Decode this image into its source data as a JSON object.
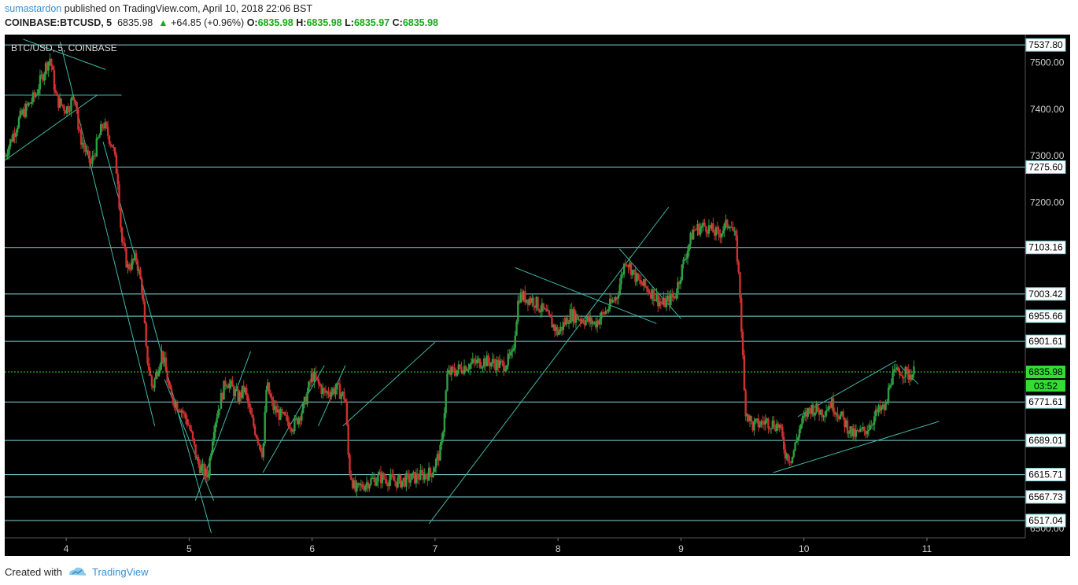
{
  "header": {
    "author": "sumastardon",
    "published": "published on TradingView.com, April 10, 2018 22:06 BST",
    "symbol": "COINBASE:BTCUSD, 5",
    "last": "6835.98",
    "change": "+64.85 (+0.96%)",
    "o_label": "O:",
    "o": "6835.98",
    "h_label": "H:",
    "h": "6835.98",
    "l_label": "L:",
    "l": "6835.97",
    "c_label": "C:",
    "c": "6835.98"
  },
  "footer": {
    "created_with": "Created with",
    "brand": "TradingView"
  },
  "colors": {
    "background": "#000000",
    "up": "#2ea043",
    "down": "#d03030",
    "level": "#7fd3d8",
    "trend": "#3fb8a8",
    "last_price": "#33dd33"
  },
  "chart_data": {
    "type": "candlestick",
    "title": "BTC/USD, 5, COINBASE",
    "ylim": [
      6480,
      7560
    ],
    "y_ticks": [
      "7500.00",
      "7400.00",
      "7300.00",
      "7200.00",
      "6500.00"
    ],
    "x_ticks": [
      "4",
      "5",
      "6",
      "7",
      "8",
      "9",
      "10",
      "11"
    ],
    "xlim": [
      3.5,
      11.8
    ],
    "last_price": {
      "value": 6835.98,
      "label": "6835.98"
    },
    "overlapped_label": "03:52",
    "levels": [
      {
        "value": 7537.8,
        "label": "7537.80"
      },
      {
        "value": 7275.6,
        "label": "7275.60"
      },
      {
        "value": 7103.16,
        "label": "7103.16"
      },
      {
        "value": 7003.42,
        "label": "7003.42"
      },
      {
        "value": 6955.66,
        "label": "6955.66"
      },
      {
        "value": 6901.61,
        "label": "6901.61"
      },
      {
        "value": 6771.61,
        "label": "6771.61"
      },
      {
        "value": 6689.01,
        "label": "6689.01"
      },
      {
        "value": 6615.71,
        "label": "6615.71"
      },
      {
        "value": 6567.73,
        "label": "6567.73"
      },
      {
        "value": 6517.04,
        "label": "6517.04"
      }
    ],
    "price_path": [
      [
        3.5,
        7300
      ],
      [
        3.62,
        7380
      ],
      [
        3.75,
        7430
      ],
      [
        3.83,
        7490
      ],
      [
        3.87,
        7510
      ],
      [
        3.92,
        7420
      ],
      [
        4.0,
        7400
      ],
      [
        4.08,
        7430
      ],
      [
        4.1,
        7350
      ],
      [
        4.2,
        7280
      ],
      [
        4.3,
        7370
      ],
      [
        4.38,
        7320
      ],
      [
        4.42,
        7250
      ],
      [
        4.45,
        7120
      ],
      [
        4.5,
        7060
      ],
      [
        4.57,
        7080
      ],
      [
        4.62,
        7010
      ],
      [
        4.65,
        6880
      ],
      [
        4.7,
        6800
      ],
      [
        4.78,
        6880
      ],
      [
        4.85,
        6780
      ],
      [
        4.93,
        6760
      ],
      [
        5.0,
        6720
      ],
      [
        5.07,
        6640
      ],
      [
        5.15,
        6610
      ],
      [
        5.2,
        6720
      ],
      [
        5.3,
        6820
      ],
      [
        5.4,
        6780
      ],
      [
        5.45,
        6800
      ],
      [
        5.5,
        6740
      ],
      [
        5.6,
        6660
      ],
      [
        5.63,
        6810
      ],
      [
        5.68,
        6760
      ],
      [
        5.75,
        6740
      ],
      [
        5.85,
        6720
      ],
      [
        5.93,
        6760
      ],
      [
        6.0,
        6830
      ],
      [
        6.1,
        6790
      ],
      [
        6.2,
        6800
      ],
      [
        6.27,
        6780
      ],
      [
        6.3,
        6630
      ],
      [
        6.35,
        6580
      ],
      [
        6.45,
        6600
      ],
      [
        6.55,
        6610
      ],
      [
        6.7,
        6600
      ],
      [
        6.85,
        6610
      ],
      [
        6.97,
        6620
      ],
      [
        7.05,
        6670
      ],
      [
        7.1,
        6830
      ],
      [
        7.25,
        6850
      ],
      [
        7.4,
        6860
      ],
      [
        7.55,
        6850
      ],
      [
        7.63,
        6870
      ],
      [
        7.68,
        7000
      ],
      [
        7.8,
        6990
      ],
      [
        7.9,
        6960
      ],
      [
        8.0,
        6920
      ],
      [
        8.1,
        6960
      ],
      [
        8.2,
        6950
      ],
      [
        8.3,
        6940
      ],
      [
        8.4,
        6970
      ],
      [
        8.48,
        7000
      ],
      [
        8.55,
        7080
      ],
      [
        8.65,
        7030
      ],
      [
        8.75,
        7010
      ],
      [
        8.85,
        6980
      ],
      [
        8.95,
        7000
      ],
      [
        9.03,
        7080
      ],
      [
        9.1,
        7140
      ],
      [
        9.2,
        7150
      ],
      [
        9.3,
        7130
      ],
      [
        9.4,
        7160
      ],
      [
        9.45,
        7110
      ],
      [
        9.48,
        7000
      ],
      [
        9.52,
        6760
      ],
      [
        9.58,
        6720
      ],
      [
        9.7,
        6730
      ],
      [
        9.8,
        6720
      ],
      [
        9.85,
        6660
      ],
      [
        9.9,
        6650
      ],
      [
        9.97,
        6720
      ],
      [
        10.05,
        6760
      ],
      [
        10.15,
        6750
      ],
      [
        10.22,
        6770
      ],
      [
        10.3,
        6740
      ],
      [
        10.4,
        6700
      ],
      [
        10.5,
        6710
      ],
      [
        10.6,
        6750
      ],
      [
        10.67,
        6760
      ],
      [
        10.7,
        6820
      ],
      [
        10.78,
        6840
      ],
      [
        10.85,
        6830
      ],
      [
        10.9,
        6836
      ]
    ],
    "trend_lines": [
      [
        [
          3.5,
          7290
        ],
        [
          4.25,
          7430
        ]
      ],
      [
        [
          3.5,
          7430
        ],
        [
          4.45,
          7430
        ]
      ],
      [
        [
          3.65,
          7550
        ],
        [
          4.32,
          7485
        ]
      ],
      [
        [
          3.95,
          7545
        ],
        [
          4.72,
          6720
        ]
      ],
      [
        [
          4.3,
          7330
        ],
        [
          5.18,
          6490
        ]
      ],
      [
        [
          4.8,
          6820
        ],
        [
          5.2,
          6560
        ]
      ],
      [
        [
          5.05,
          6560
        ],
        [
          5.5,
          6880
        ]
      ],
      [
        [
          5.6,
          6620
        ],
        [
          6.1,
          6850
        ]
      ],
      [
        [
          6.05,
          6720
        ],
        [
          6.27,
          6850
        ]
      ],
      [
        [
          6.25,
          6720
        ],
        [
          7.0,
          6900
        ]
      ],
      [
        [
          6.95,
          6510
        ],
        [
          8.9,
          7190
        ]
      ],
      [
        [
          7.65,
          7060
        ],
        [
          8.8,
          6940
        ]
      ],
      [
        [
          8.5,
          7100
        ],
        [
          9.0,
          6950
        ]
      ],
      [
        [
          9.75,
          6620
        ],
        [
          11.1,
          6730
        ]
      ],
      [
        [
          9.95,
          6740
        ],
        [
          10.75,
          6860
        ]
      ],
      [
        [
          10.78,
          6850
        ],
        [
          10.93,
          6810
        ]
      ]
    ]
  }
}
